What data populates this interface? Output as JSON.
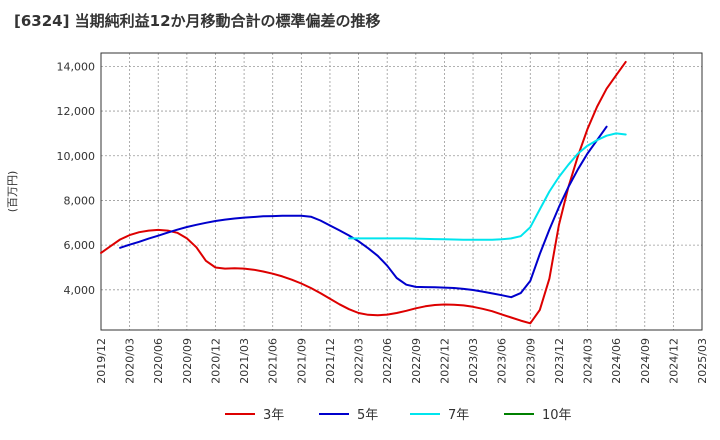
{
  "chart_data": {
    "type": "line",
    "title": "[6324]  当期純利益12か月移動合計の標準偏差の推移",
    "ylabel": "(百万円)",
    "xlabel": "",
    "ylim": [
      2200,
      14600
    ],
    "yticks": [
      4000,
      6000,
      8000,
      10000,
      12000,
      14000
    ],
    "ytick_labels": [
      "4,000",
      "6,000",
      "8,000",
      "10,000",
      "12,000",
      "14,000"
    ],
    "xtick_labels": [
      "2019/12",
      "2020/03",
      "2020/06",
      "2020/09",
      "2020/12",
      "2021/03",
      "2021/06",
      "2021/09",
      "2021/12",
      "2022/03",
      "2022/06",
      "2022/09",
      "2022/12",
      "2023/03",
      "2023/06",
      "2023/09",
      "2023/12",
      "2024/03",
      "2024/06",
      "2024/09",
      "2024/12",
      "2025/03"
    ],
    "grid": true,
    "legend_position": "bottom",
    "series": [
      {
        "name": "3年",
        "color": "#dd0000",
        "x": [
          0,
          1,
          2,
          3,
          4,
          5,
          6,
          7,
          8,
          9,
          10,
          11,
          12,
          13,
          14,
          15,
          16,
          17,
          18,
          19,
          20,
          21,
          22,
          23,
          24,
          25,
          26,
          27,
          28,
          29,
          30,
          31,
          32,
          33,
          34,
          35,
          36,
          37,
          38,
          39,
          40,
          41,
          42,
          43,
          44,
          45,
          46,
          47,
          48,
          49,
          50,
          51,
          52,
          53,
          54,
          55,
          56,
          57,
          58,
          59,
          60
        ],
        "values": [
          5650,
          5950,
          6250,
          6450,
          6580,
          6650,
          6680,
          6650,
          6550,
          6300,
          5900,
          5300,
          5000,
          4950,
          4960,
          4950,
          4900,
          4820,
          4720,
          4600,
          4450,
          4280,
          4080,
          3850,
          3600,
          3350,
          3130,
          2960,
          2880,
          2860,
          2890,
          2960,
          3060,
          3170,
          3260,
          3320,
          3340,
          3330,
          3300,
          3240,
          3150,
          3040,
          2900,
          2760,
          2620,
          2500,
          3100,
          4500,
          6900,
          8600,
          10000,
          11200,
          12200,
          13000,
          13600,
          14200,
          null,
          null,
          null,
          null,
          null
        ]
      },
      {
        "name": "5年",
        "color": "#0000cc",
        "x": [
          2,
          3,
          4,
          5,
          6,
          7,
          8,
          9,
          10,
          11,
          12,
          13,
          14,
          15,
          16,
          17,
          18,
          19,
          20,
          21,
          22,
          23,
          24,
          25,
          26,
          27,
          28,
          29,
          30,
          31,
          32,
          33,
          34,
          35,
          36,
          37,
          38,
          39,
          40,
          41,
          42,
          43,
          44,
          45,
          46,
          47,
          48,
          49,
          50,
          51,
          52,
          53,
          54,
          55,
          56,
          57,
          58,
          59,
          60
        ],
        "values": [
          5880,
          6020,
          6150,
          6290,
          6420,
          6560,
          6690,
          6810,
          6910,
          7000,
          7080,
          7140,
          7190,
          7230,
          7260,
          7290,
          7300,
          7310,
          7310,
          7310,
          7270,
          7100,
          6880,
          6660,
          6430,
          6170,
          5860,
          5520,
          5080,
          4530,
          4230,
          4130,
          4120,
          4110,
          4100,
          4080,
          4040,
          3990,
          3920,
          3840,
          3760,
          3670,
          3850,
          4400,
          5600,
          6700,
          7700,
          8600,
          9400,
          10100,
          10700,
          11300,
          null,
          null,
          null,
          null,
          null,
          null,
          null
        ]
      },
      {
        "name": "7年",
        "color": "#00e5ee",
        "x": [
          26,
          27,
          28,
          29,
          30,
          31,
          32,
          33,
          34,
          35,
          36,
          37,
          38,
          39,
          40,
          41,
          42,
          43,
          44,
          45,
          46,
          47,
          48,
          49,
          50,
          51,
          52,
          53,
          54,
          55
        ],
        "values": [
          6300,
          6300,
          6300,
          6300,
          6300,
          6300,
          6300,
          6290,
          6280,
          6270,
          6260,
          6250,
          6240,
          6240,
          6240,
          6240,
          6260,
          6300,
          6400,
          6800,
          7600,
          8400,
          9050,
          9600,
          10100,
          10450,
          10700,
          10900,
          11000,
          10950
        ]
      },
      {
        "name": "10年",
        "color": "#008000",
        "x": [],
        "values": []
      }
    ]
  }
}
